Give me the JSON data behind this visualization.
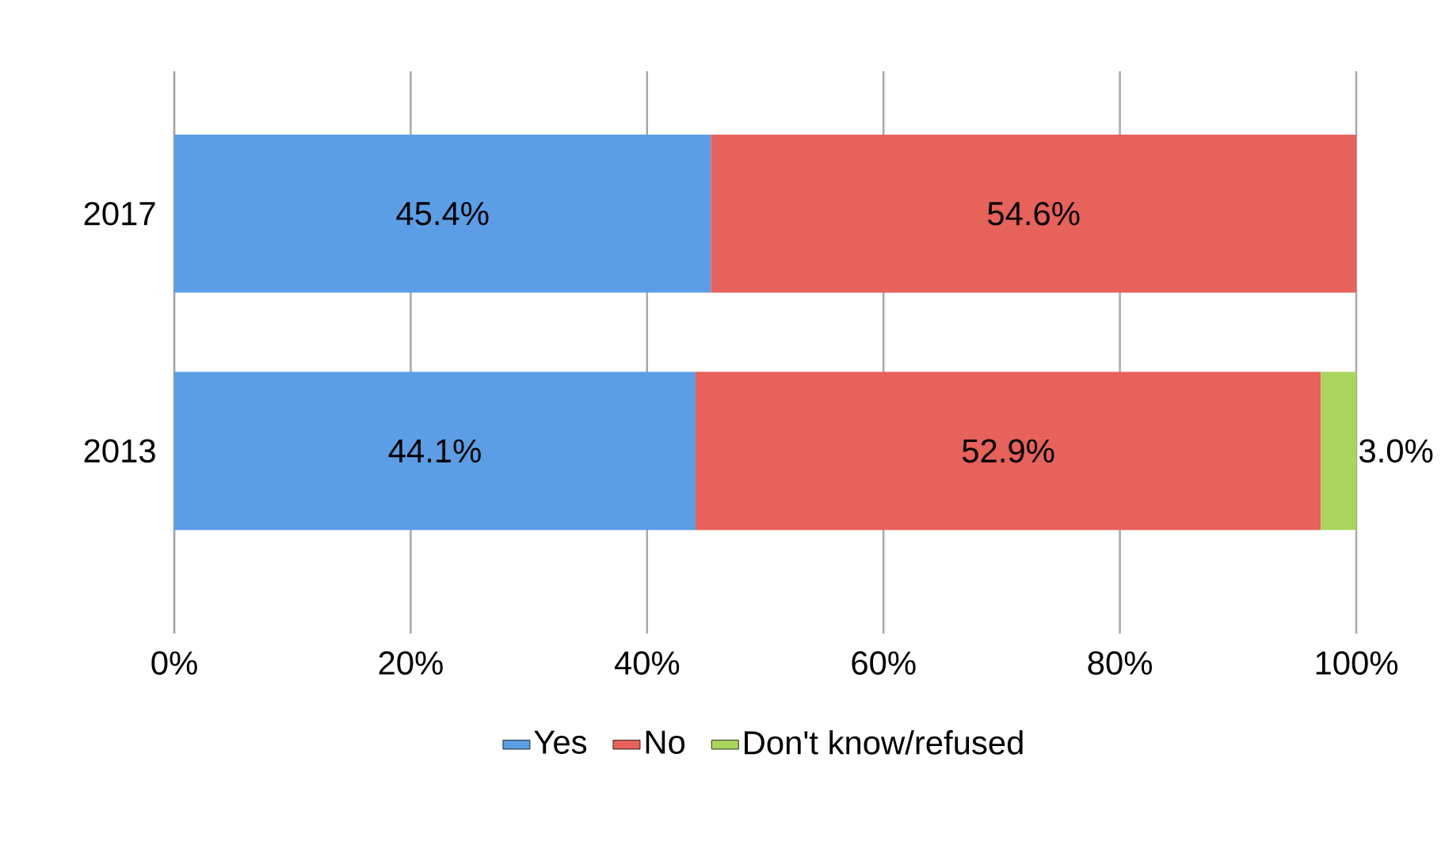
{
  "chart_data": {
    "type": "bar",
    "orientation": "horizontal",
    "stacked": true,
    "categories": [
      "2017",
      "2013"
    ],
    "series": [
      {
        "name": "Yes",
        "color": "#5b9ee6",
        "values": [
          45.4,
          44.1
        ],
        "value_labels": [
          "45.4%",
          "44.1%"
        ]
      },
      {
        "name": "No",
        "color": "#e6625a",
        "values": [
          54.6,
          52.9
        ],
        "value_labels": [
          "54.6%",
          "52.9%"
        ]
      },
      {
        "name": "Don't know/refused",
        "color": "#a9d55c",
        "values": [
          null,
          3.0
        ],
        "value_labels": [
          null,
          "3.0%"
        ]
      }
    ],
    "xlim": [
      0,
      100
    ],
    "xticks": [
      {
        "value": 0,
        "label": "0%"
      },
      {
        "value": 20,
        "label": "20%"
      },
      {
        "value": 40,
        "label": "40%"
      },
      {
        "value": 60,
        "label": "60%"
      },
      {
        "value": 80,
        "label": "80%"
      },
      {
        "value": 100,
        "label": "100%"
      }
    ],
    "grid": "x",
    "legend": "bottom"
  }
}
